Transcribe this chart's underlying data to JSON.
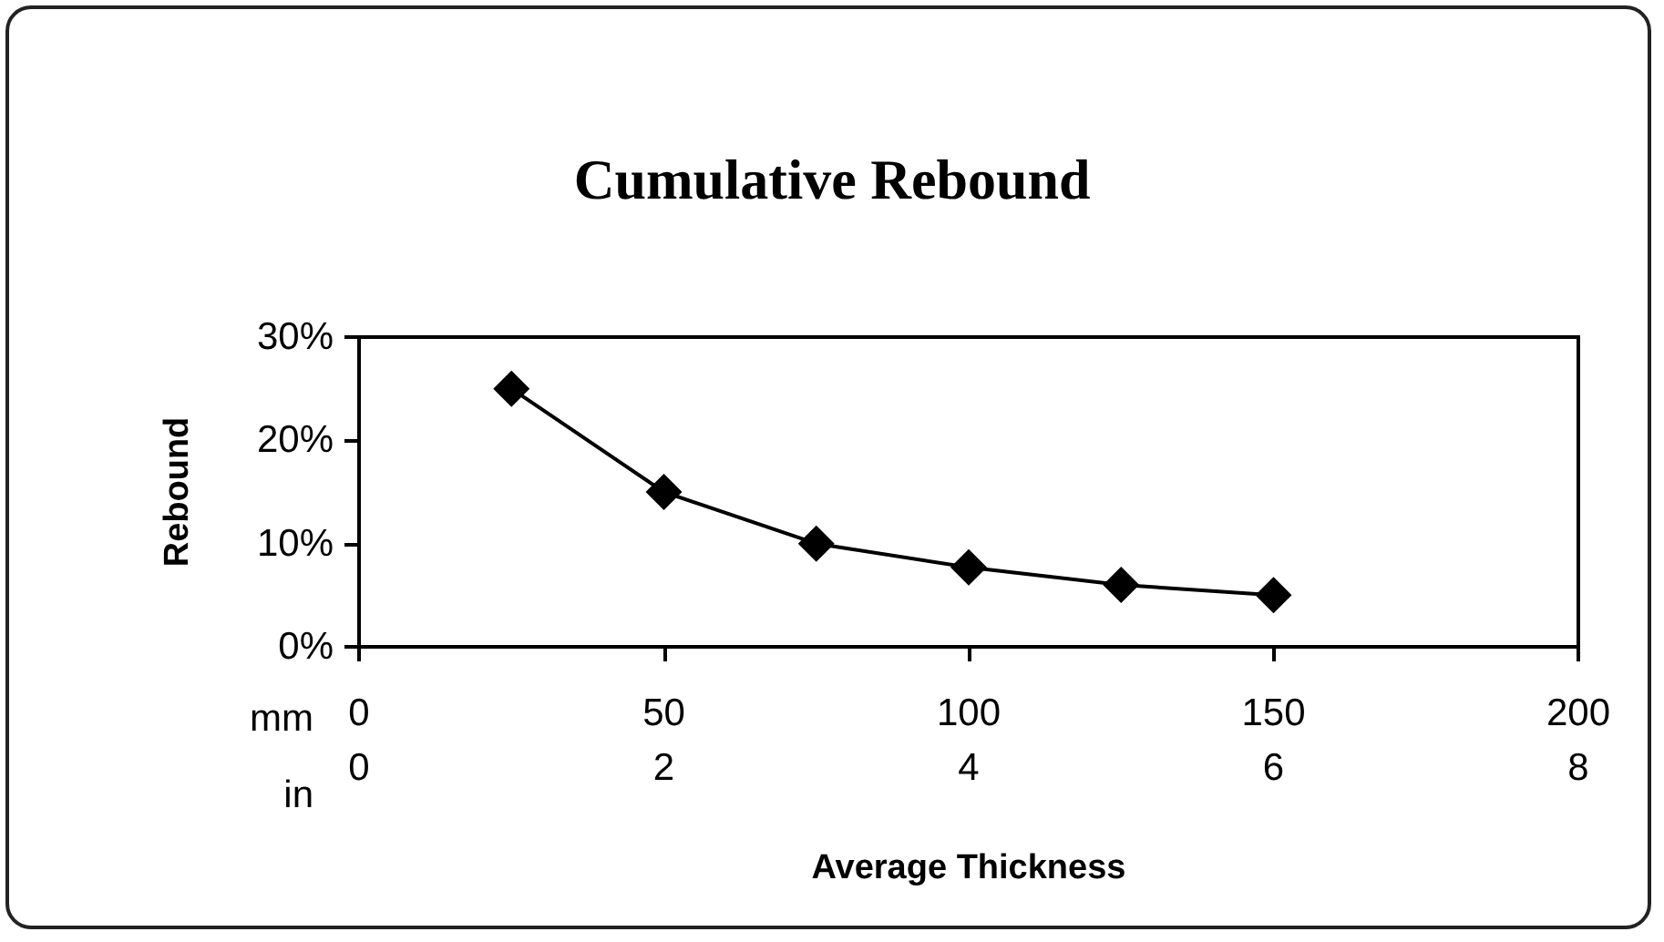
{
  "chart_data": {
    "type": "line",
    "title": "Cumulative Rebound",
    "xlabel": "Average Thickness",
    "ylabel": "Rebound",
    "annotations": [
      "mm",
      "in"
    ],
    "x": [
      25,
      50,
      75,
      100,
      125,
      150
    ],
    "series": [
      {
        "color": "#000000",
        "values": [
          25,
          15,
          10,
          7.7,
          6,
          5
        ]
      }
    ],
    "xlim": [
      0,
      200
    ],
    "xticks": [
      0,
      50,
      100,
      150,
      200
    ],
    "x2lim": [
      0,
      8
    ],
    "x2ticks": [
      0,
      2,
      4,
      6,
      8
    ],
    "ylim": [
      0,
      30
    ],
    "yticks": [
      {
        "value": 0,
        "label": "0%"
      },
      {
        "value": 10,
        "label": "10%"
      },
      {
        "value": 20,
        "label": "20%"
      },
      {
        "value": 30,
        "label": "30%"
      }
    ],
    "marker": "diamond",
    "line_style": "solid",
    "grid": false
  }
}
